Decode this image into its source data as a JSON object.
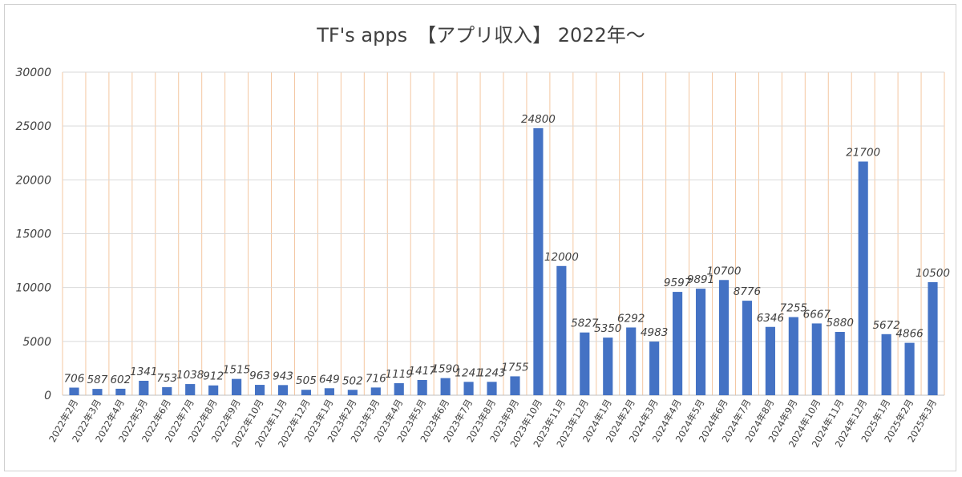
{
  "chart_data": {
    "type": "bar",
    "title": "TF's apps　【アプリ収入】 2022年〜",
    "xlabel": "",
    "ylabel": "",
    "ylim": [
      0,
      30000
    ],
    "yticks": [
      0,
      5000,
      10000,
      15000,
      20000,
      25000,
      30000
    ],
    "grid": true,
    "legend": "none",
    "colors": {
      "bar": "#4472c4",
      "hgrid": "#d9d9d9",
      "vgrid": "#f4c7a1",
      "axis": "#bfbfbf"
    },
    "categories": [
      "2022年2月",
      "2022年3月",
      "2022年4月",
      "2022年5月",
      "2022年6月",
      "2022年7月",
      "2022年8月",
      "2022年9月",
      "2022年10月",
      "2022年11月",
      "2022年12月",
      "2023年1月",
      "2023年2月",
      "2023年3月",
      "2023年4月",
      "2023年5月",
      "2023年6月",
      "2023年7月",
      "2023年8月",
      "2023年9月",
      "2023年10月",
      "2023年11月",
      "2023年12月",
      "2024年1月",
      "2024年2月",
      "2024年3月",
      "2024年4月",
      "2024年5月",
      "2024年6月",
      "2024年7月",
      "2024年8月",
      "2024年9月",
      "2024年10月",
      "2024年11月",
      "2024年12月",
      "2025年1月",
      "2025年2月",
      "2025年3月"
    ],
    "values": [
      706,
      587,
      602,
      1341,
      753,
      1038,
      912,
      1515,
      963,
      943,
      505,
      649,
      502,
      716,
      1119,
      1417,
      1590,
      1241,
      1243,
      1755,
      24800,
      12000,
      5827,
      5350,
      6292,
      4983,
      9597,
      9891,
      10700,
      8776,
      6346,
      7255,
      6667,
      5880,
      21700,
      5672,
      4866,
      10500
    ]
  }
}
